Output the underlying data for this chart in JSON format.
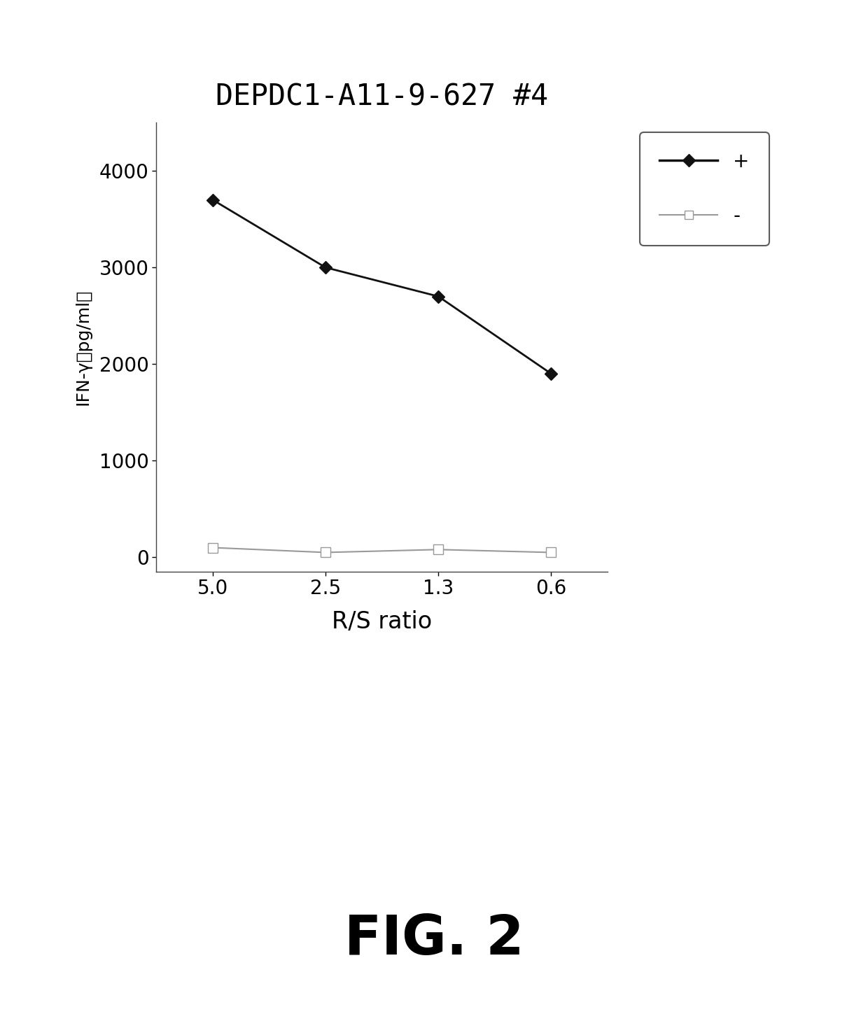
{
  "title": "DEPDC1-A11-9-627 #4",
  "xlabel": "R/S ratio",
  "ylabel": "IFN-γ（pg/ml）",
  "ylabel_parts": [
    "IFN-γ",
    "(pg/ml)"
  ],
  "x_labels": [
    "5.0",
    "2.5",
    "1.3",
    "0.6"
  ],
  "x_values": [
    0,
    1,
    2,
    3
  ],
  "plus_values": [
    3700,
    3000,
    2700,
    1900
  ],
  "minus_values": [
    100,
    50,
    80,
    50
  ],
  "ylim": [
    -150,
    4500
  ],
  "yticks": [
    0,
    1000,
    2000,
    3000,
    4000
  ],
  "plus_color": "#111111",
  "minus_color": "#999999",
  "fig_caption": "FIG. 2",
  "legend_plus_label": "+",
  "legend_minus_label": "-",
  "bg_color": "#ffffff"
}
